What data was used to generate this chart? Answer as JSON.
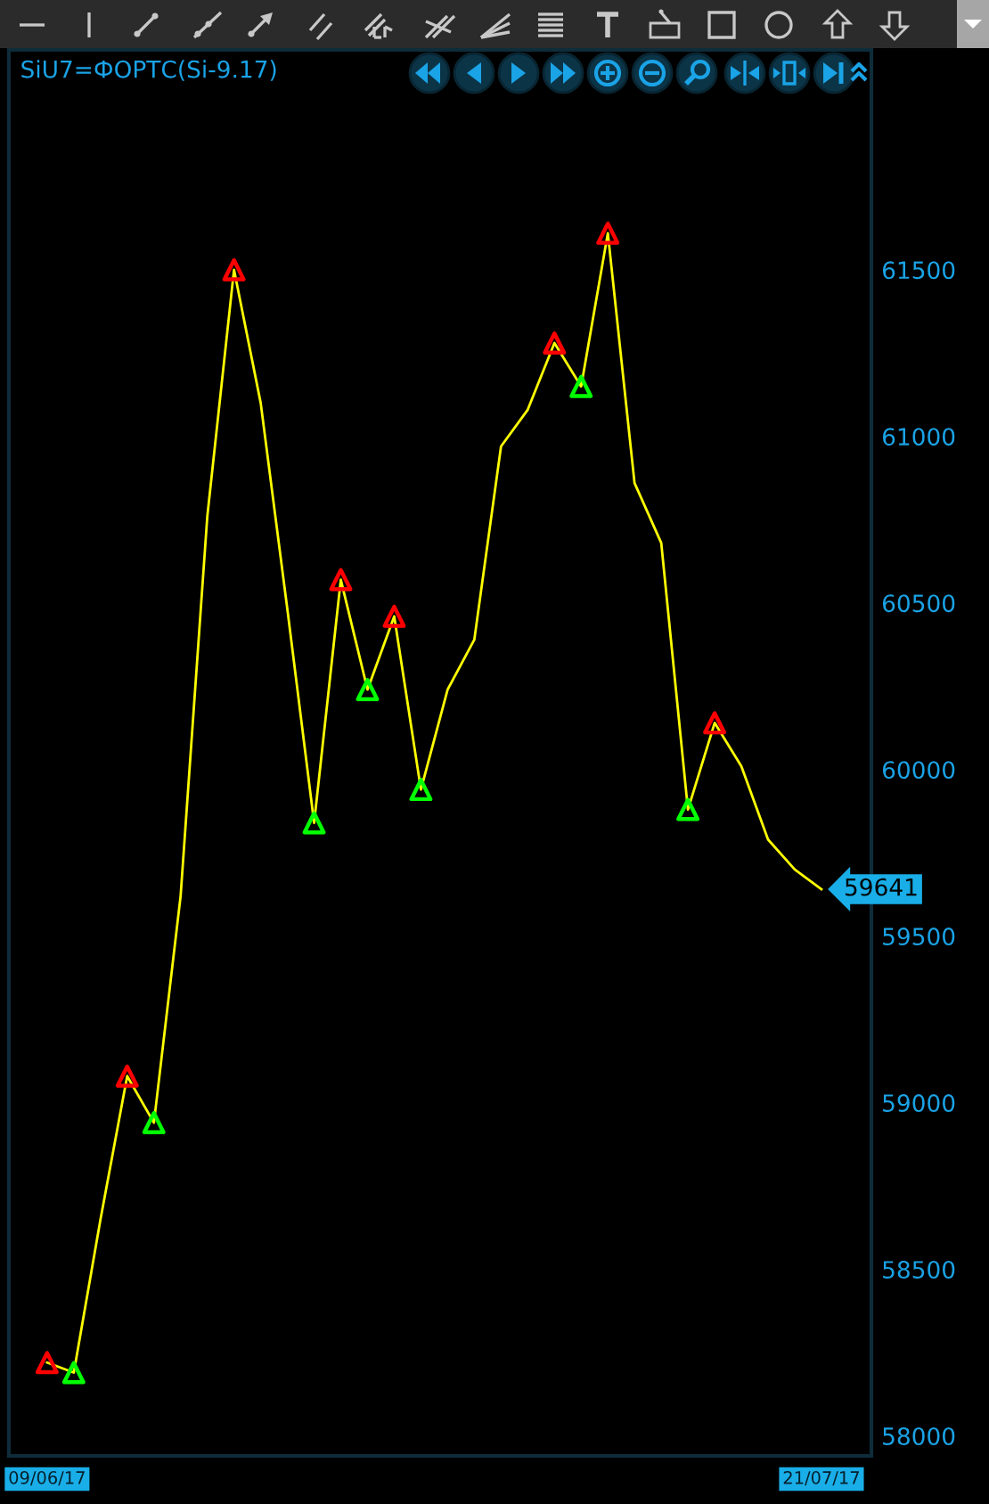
{
  "chart_data": {
    "type": "line",
    "title": "SiU7=ФОРТС(Si-9.17)",
    "categories": [
      "09/06/17",
      null,
      null,
      null,
      null,
      null,
      null,
      null,
      null,
      null,
      null,
      null,
      null,
      null,
      null,
      null,
      null,
      null,
      null,
      null,
      null,
      null,
      null,
      null,
      null,
      null,
      null,
      null,
      null,
      "21/07/17"
    ],
    "series": [
      {
        "color": "#ffff00",
        "values": [
          58220,
          58190,
          58650,
          59080,
          58940,
          59620,
          60760,
          61500,
          61100,
          60480,
          59840,
          60570,
          60240,
          60460,
          59940,
          60240,
          60390,
          60970,
          61080,
          61280,
          61150,
          61610,
          60860,
          60680,
          59880,
          60140,
          60010,
          59790,
          59700,
          59641
        ],
        "value_labels": [
          null,
          null,
          null,
          null,
          null,
          null,
          null,
          null,
          null,
          null,
          null,
          null,
          null,
          null,
          null,
          null,
          null,
          null,
          null,
          null,
          null,
          null,
          null,
          null,
          null,
          null,
          null,
          null,
          null,
          "59641"
        ]
      },
      {
        "type": "scatter",
        "color": "#ff0000",
        "marker": "triangle",
        "values": [
          58220,
          null,
          null,
          59080,
          null,
          null,
          null,
          61500,
          null,
          null,
          null,
          60570,
          null,
          60460,
          null,
          null,
          null,
          null,
          null,
          61280,
          null,
          61610,
          null,
          null,
          null,
          60140,
          null,
          null,
          null,
          null
        ]
      },
      {
        "type": "scatter",
        "color": "#00ff00",
        "marker": "triangle",
        "values": [
          null,
          58190,
          null,
          null,
          58940,
          null,
          null,
          null,
          null,
          null,
          59840,
          null,
          60240,
          null,
          59940,
          null,
          null,
          null,
          null,
          null,
          61150,
          null,
          null,
          null,
          59880,
          null,
          null,
          null,
          null,
          null
        ]
      }
    ],
    "ylim": [
      57940,
      62160
    ],
    "yticks": [
      58000,
      58500,
      59000,
      59500,
      60000,
      60500,
      61000,
      61500
    ]
  }
}
